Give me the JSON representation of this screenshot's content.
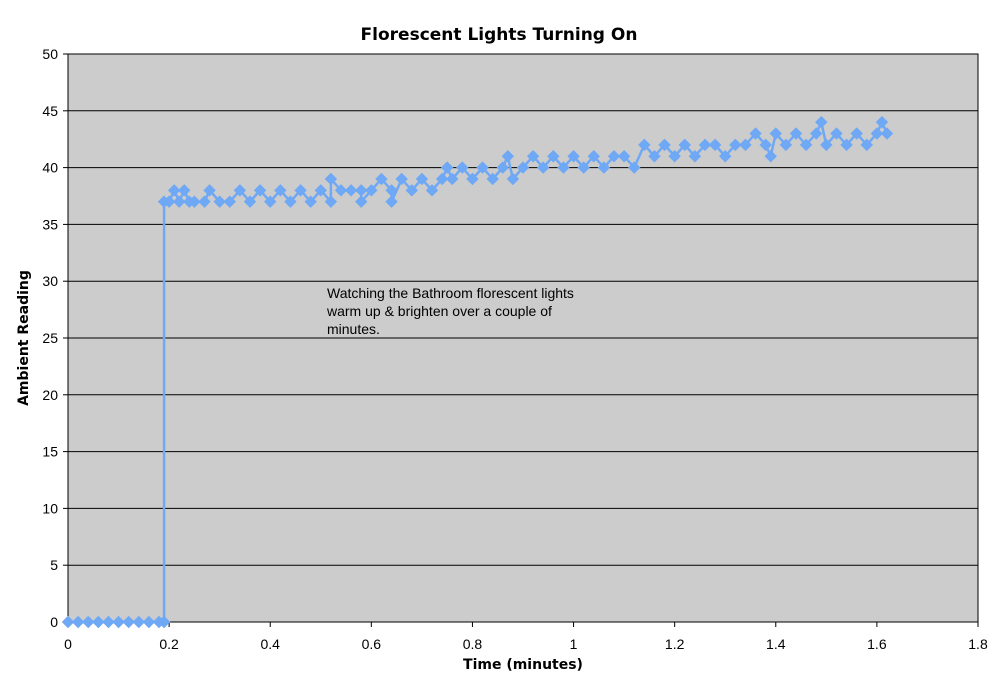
{
  "chart_data": {
    "type": "scatter",
    "title": "Florescent Lights Turning On",
    "xlabel": "Time (minutes)",
    "ylabel": "Ambient Reading",
    "xlim": [
      0,
      1.8
    ],
    "ylim": [
      0,
      50
    ],
    "x_ticks": [
      "0",
      "0.2",
      "0.4",
      "0.6",
      "0.8",
      "1",
      "1.2",
      "1.4",
      "1.6",
      "1.8"
    ],
    "y_ticks": [
      "0",
      "5",
      "10",
      "15",
      "20",
      "25",
      "30",
      "35",
      "40",
      "45",
      "50"
    ],
    "grid": "horizontal",
    "legend": "none",
    "annotation": [
      "Watching the Bathroom florescent lights",
      "warm up & brighten over a couple of",
      "minutes."
    ],
    "series": [
      {
        "color": "#6fa8f4",
        "marker": "diamond",
        "connected": true,
        "x": [
          0,
          0.02,
          0.04,
          0.06,
          0.08,
          0.1,
          0.12,
          0.14,
          0.16,
          0.18,
          0.19,
          0.19,
          0.2,
          0.21,
          0.22,
          0.23,
          0.24,
          0.25,
          0.27,
          0.28,
          0.3,
          0.32,
          0.34,
          0.36,
          0.38,
          0.4,
          0.42,
          0.44,
          0.46,
          0.48,
          0.5,
          0.52,
          0.52,
          0.54,
          0.56,
          0.58,
          0.58,
          0.6,
          0.62,
          0.64,
          0.64,
          0.66,
          0.68,
          0.7,
          0.72,
          0.74,
          0.75,
          0.76,
          0.78,
          0.8,
          0.82,
          0.84,
          0.86,
          0.87,
          0.88,
          0.9,
          0.92,
          0.94,
          0.96,
          0.98,
          1.0,
          1.02,
          1.04,
          1.06,
          1.08,
          1.1,
          1.12,
          1.14,
          1.16,
          1.18,
          1.2,
          1.22,
          1.24,
          1.26,
          1.28,
          1.3,
          1.32,
          1.34,
          1.36,
          1.38,
          1.39,
          1.4,
          1.42,
          1.44,
          1.46,
          1.48,
          1.49,
          1.5,
          1.52,
          1.54,
          1.56,
          1.58,
          1.6,
          1.61,
          1.62
        ],
        "y": [
          0,
          0,
          0,
          0,
          0,
          0,
          0,
          0,
          0,
          0,
          0,
          37,
          37,
          38,
          37,
          38,
          37,
          37,
          37,
          38,
          37,
          37,
          38,
          37,
          38,
          37,
          38,
          37,
          38,
          37,
          38,
          37,
          39,
          38,
          38,
          38,
          37,
          38,
          39,
          38,
          37,
          39,
          38,
          39,
          38,
          39,
          40,
          39,
          40,
          39,
          40,
          39,
          40,
          41,
          39,
          40,
          41,
          40,
          41,
          40,
          41,
          40,
          41,
          40,
          41,
          41,
          40,
          42,
          41,
          42,
          41,
          42,
          41,
          42,
          42,
          41,
          42,
          42,
          43,
          42,
          41,
          43,
          42,
          43,
          42,
          43,
          44,
          42,
          43,
          42,
          43,
          42,
          43,
          44,
          43
        ]
      }
    ]
  }
}
